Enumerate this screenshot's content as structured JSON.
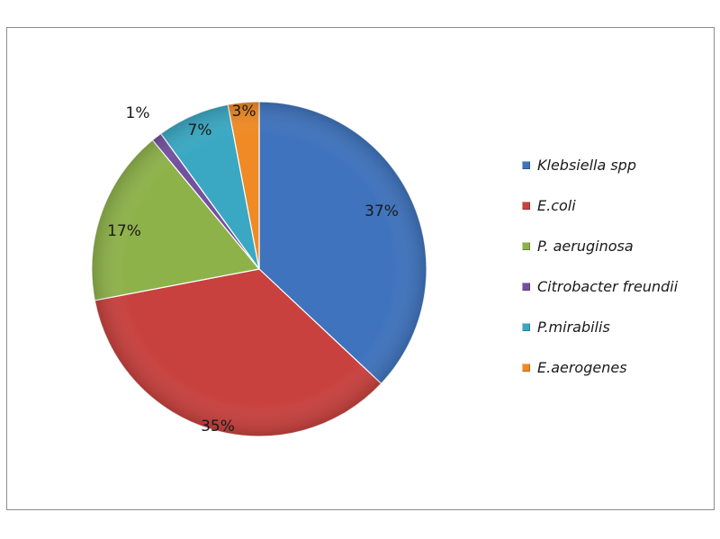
{
  "chart_data": {
    "type": "pie",
    "slices": [
      {
        "name": "Klebsiella spp",
        "value": 37,
        "label": "37%",
        "color": "#3f73bd"
      },
      {
        "name": "E.coli",
        "value": 35,
        "label": "35%",
        "color": "#c8413e"
      },
      {
        "name": "P. aeruginosa",
        "value": 17,
        "label": "17%",
        "color": "#8eb24a"
      },
      {
        "name": "Citrobacter freundii",
        "value": 1,
        "label": "1%",
        "color": "#7351a0"
      },
      {
        "name": "P.mirabilis",
        "value": 7,
        "label": "7%",
        "color": "#3aa8c3"
      },
      {
        "name": "E.aerogenes",
        "value": 3,
        "label": "3%",
        "color": "#f08a24"
      }
    ],
    "legend_position": "right"
  }
}
